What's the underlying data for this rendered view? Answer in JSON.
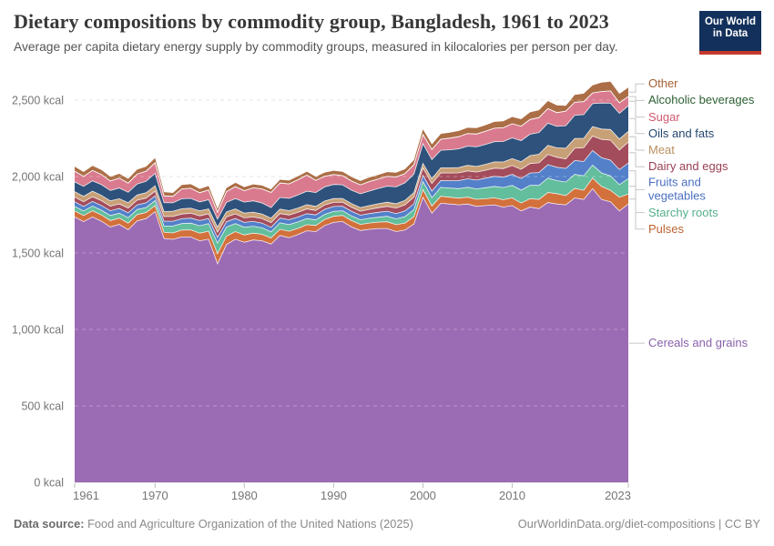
{
  "header": {
    "title": "Dietary compositions by commodity group, Bangladesh, 1961 to 2023",
    "subtitle": "Average per capita dietary energy supply by commodity groups, measured in kilocalories per person per day."
  },
  "logo": {
    "line1": "Our World",
    "line2": "in Data",
    "bg_color": "#12305b",
    "accent_color": "#c5382e"
  },
  "footer": {
    "source_label": "Data source:",
    "source_text": " Food and Agriculture Organization of the United Nations (2025)",
    "credit": "OurWorldinData.org/diet-compositions | CC BY"
  },
  "chart_data": {
    "type": "area",
    "stacked": true,
    "title": "Dietary compositions by commodity group, Bangladesh, 1961 to 2023",
    "x_start_year": 1961,
    "x_end_year": 2023,
    "x_ticks": [
      1961,
      1970,
      1980,
      1990,
      2000,
      2010,
      2023
    ],
    "y_ticks": [
      0,
      500,
      1000,
      1500,
      2000,
      2500
    ],
    "y_tick_labels": [
      "0 kcal",
      "500 kcal",
      "1,000 kcal",
      "1,500 kcal",
      "2,000 kcal",
      "2,500 kcal"
    ],
    "ylim": [
      0,
      2500
    ],
    "y_unit": "kcal",
    "grid": "dashed",
    "legend_position": "right",
    "series_bottom_to_top": [
      {
        "name": "Cereals and grains",
        "color": "#9b6bb4",
        "text_color": "#8861ab",
        "values": [
          1736,
          1705,
          1736,
          1708,
          1670,
          1687,
          1652,
          1710,
          1725,
          1770,
          1595,
          1589,
          1605,
          1605,
          1580,
          1590,
          1430,
          1555,
          1590,
          1570,
          1585,
          1580,
          1558,
          1615,
          1600,
          1620,
          1645,
          1640,
          1680,
          1700,
          1706,
          1670,
          1647,
          1655,
          1660,
          1660,
          1640,
          1650,
          1690,
          1865,
          1760,
          1825,
          1820,
          1815,
          1820,
          1805,
          1810,
          1815,
          1800,
          1810,
          1775,
          1800,
          1790,
          1830,
          1820,
          1815,
          1860,
          1850,
          1920,
          1850,
          1835,
          1775,
          1820
        ]
      },
      {
        "name": "Pulses",
        "color": "#d2713c",
        "text_color": "#be6430",
        "values": [
          39,
          40,
          40,
          41,
          42,
          41,
          43,
          41,
          40,
          40,
          40,
          42,
          45,
          46,
          50,
          52,
          65,
          55,
          50,
          48,
          45,
          42,
          40,
          40,
          42,
          41,
          40,
          40,
          39,
          40,
          40,
          42,
          40,
          41,
          42,
          44,
          45,
          46,
          48,
          50,
          47,
          46,
          45,
          44,
          45,
          46,
          45,
          46,
          48,
          50,
          52,
          55,
          60,
          65,
          68,
          60,
          62,
          60,
          70,
          85,
          75,
          90,
          66
        ]
      },
      {
        "name": "Starchy roots",
        "color": "#62be9c",
        "text_color": "#55ae8c",
        "values": [
          30,
          30,
          31,
          31,
          33,
          32,
          36,
          33,
          32,
          33,
          42,
          45,
          42,
          44,
          48,
          50,
          70,
          60,
          52,
          50,
          45,
          42,
          40,
          42,
          44,
          42,
          40,
          36,
          34,
          32,
          30,
          30,
          30,
          31,
          32,
          36,
          38,
          42,
          46,
          52,
          55,
          58,
          60,
          62,
          65,
          68,
          72,
          75,
          80,
          82,
          84,
          88,
          92,
          95,
          85,
          89,
          92,
          95,
          85,
          88,
          95,
          82,
          101
        ]
      },
      {
        "name": "Fruits and\nvegetables",
        "color": "#5380c9",
        "text_color": "#4a6fc0",
        "values": [
          30,
          30,
          30,
          31,
          31,
          31,
          32,
          31,
          31,
          30,
          31,
          32,
          32,
          33,
          34,
          33,
          36,
          34,
          33,
          32,
          31,
          31,
          30,
          31,
          31,
          32,
          32,
          33,
          33,
          32,
          30,
          31,
          30,
          31,
          32,
          33,
          35,
          37,
          38,
          40,
          43,
          45,
          48,
          52,
          55,
          58,
          62,
          65,
          68,
          72,
          76,
          80,
          84,
          88,
          88,
          89,
          91,
          93,
          95,
          100,
          102,
          98,
          101
        ]
      },
      {
        "name": "Dairy and eggs",
        "color": "#a34c5c",
        "text_color": "#9a3e54",
        "values": [
          30,
          30,
          31,
          31,
          30,
          30,
          31,
          30,
          31,
          32,
          30,
          31,
          31,
          32,
          31,
          31,
          34,
          32,
          31,
          30,
          30,
          30,
          30,
          30,
          31,
          31,
          31,
          29,
          28,
          27,
          26,
          26,
          26,
          27,
          30,
          32,
          36,
          40,
          44,
          49,
          49,
          50,
          50,
          51,
          52,
          52,
          52,
          54,
          56,
          58,
          60,
          62,
          64,
          66,
          65,
          62,
          80,
          90,
          95,
          120,
          131,
          128,
          137
        ]
      },
      {
        "name": "Meat",
        "color": "#c8a077",
        "text_color": "#b8905f",
        "values": [
          36,
          36,
          36,
          35,
          35,
          34,
          35,
          34,
          35,
          35,
          33,
          34,
          34,
          33,
          33,
          32,
          34,
          33,
          32,
          31,
          31,
          30,
          30,
          29,
          29,
          28,
          28,
          27,
          26,
          25,
          24,
          24,
          24,
          25,
          26,
          27,
          28,
          29,
          30,
          30,
          32,
          33,
          34,
          35,
          36,
          37,
          39,
          41,
          43,
          45,
          50,
          52,
          56,
          60,
          62,
          70,
          64,
          62,
          62,
          68,
          70,
          72,
          71
        ]
      },
      {
        "name": "Oils and fats",
        "color": "#2e527b",
        "text_color": "#25476e",
        "values": [
          64,
          65,
          68,
          70,
          68,
          70,
          68,
          72,
          75,
          80,
          58,
          55,
          66,
          64,
          58,
          60,
          52,
          62,
          68,
          72,
          74,
          72,
          69,
          76,
          80,
          85,
          88,
          90,
          92,
          92,
          90,
          88,
          90,
          95,
          100,
          105,
          110,
          115,
          120,
          129,
          125,
          115,
          118,
          122,
          126,
          128,
          130,
          132,
          134,
          136,
          138,
          140,
          142,
          145,
          140,
          148,
          152,
          155,
          150,
          170,
          172,
          168,
          167
        ]
      },
      {
        "name": "Sugar",
        "color": "#d97a8f",
        "text_color": "#d0596e",
        "values": [
          70,
          65,
          68,
          66,
          62,
          64,
          60,
          65,
          66,
          70,
          45,
          42,
          64,
          66,
          60,
          64,
          45,
          70,
          78,
          74,
          85,
          92,
          99,
          95,
          95,
          100,
          105,
          80,
          70,
          65,
          60,
          60,
          58,
          62,
          62,
          64,
          65,
          60,
          62,
          60,
          66,
          72,
          76,
          80,
          82,
          84,
          86,
          88,
          90,
          92,
          94,
          96,
          98,
          95,
          90,
          95,
          85,
          85,
          70,
          75,
          80,
          70,
          60
        ]
      },
      {
        "name": "Alcoholic beverages",
        "color": "#2c5e32",
        "text_color": "#2c5e32",
        "values": [
          0,
          0,
          0,
          0,
          0,
          0,
          0,
          0,
          0,
          0,
          0,
          0,
          0,
          0,
          0,
          0,
          0,
          0,
          0,
          0,
          0,
          0,
          0,
          0,
          0,
          0,
          0,
          0,
          0,
          0,
          0,
          0,
          0,
          0,
          0,
          0,
          0,
          0,
          0,
          0,
          0,
          0,
          0,
          0,
          0,
          0,
          0,
          0,
          0,
          0,
          0,
          0,
          0,
          0,
          0,
          0,
          0,
          0,
          0,
          0,
          0,
          0,
          0
        ]
      },
      {
        "name": "Other",
        "color": "#ab6e46",
        "text_color": "#a35e33",
        "values": [
          30,
          29,
          30,
          30,
          28,
          29,
          28,
          29,
          30,
          30,
          24,
          23,
          26,
          27,
          25,
          26,
          22,
          24,
          25,
          24,
          23,
          22,
          20,
          21,
          22,
          22,
          23,
          23,
          24,
          25,
          25,
          26,
          26,
          27,
          27,
          28,
          28,
          29,
          30,
          33,
          34,
          35,
          36,
          37,
          38,
          39,
          40,
          42,
          43,
          45,
          46,
          47,
          48,
          50,
          48,
          35,
          48,
          52,
          50,
          58,
          60,
          58,
          59
        ]
      }
    ]
  }
}
